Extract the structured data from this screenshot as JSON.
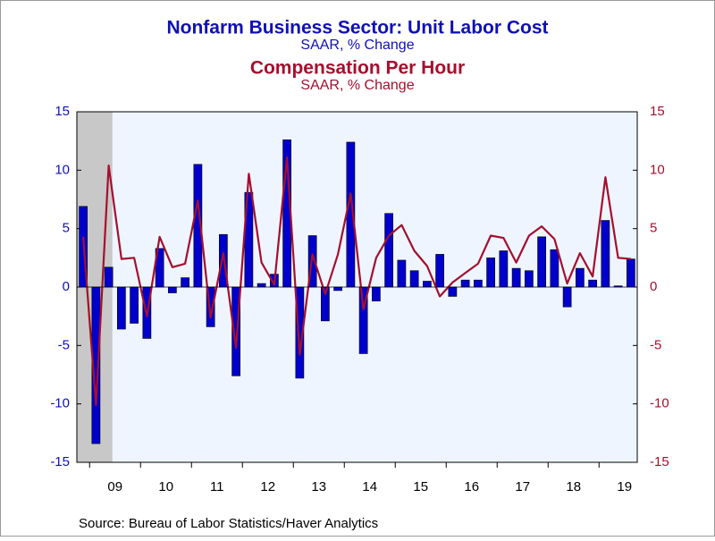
{
  "chart_data": {
    "type": "bar_line",
    "title": "Nonfarm Business Sector: Unit Labor Cost",
    "subtitle": "SAAR, % Change",
    "title2": "Compensation Per Hour",
    "subtitle2": "SAAR, % Change",
    "source": "Source:  Bureau of Labor Statistics/Haver Analytics",
    "categories": [
      null,
      null,
      "09",
      null,
      null,
      null,
      "10",
      null,
      null,
      null,
      "11",
      null,
      null,
      null,
      "12",
      null,
      null,
      null,
      "13",
      null,
      null,
      null,
      "14",
      null,
      null,
      null,
      "15",
      null,
      null,
      null,
      "16",
      null,
      null,
      null,
      "17",
      null,
      null,
      null,
      "18",
      null,
      null,
      null,
      "19",
      null
    ],
    "series": [
      {
        "name": "Unit Labor Cost",
        "type": "bar",
        "color": "#0000cc",
        "axis": "y",
        "values": [
          6.9,
          -13.4,
          1.7,
          -3.6,
          -3.1,
          -4.4,
          3.3,
          -0.5,
          0.8,
          10.5,
          -3.4,
          4.5,
          -7.6,
          8.1,
          0.3,
          1.1,
          12.6,
          -7.8,
          4.4,
          -2.9,
          -0.3,
          12.4,
          -5.7,
          -1.2,
          6.3,
          2.3,
          1.4,
          0.5,
          2.8,
          -0.8,
          0.6,
          0.6,
          2.5,
          3.1,
          1.6,
          1.4,
          4.3,
          3.2,
          -1.7,
          1.6,
          0.6,
          5.7,
          0.1,
          2.4
        ]
      },
      {
        "name": "Compensation Per Hour",
        "type": "line",
        "color": "#a50f2d",
        "axis": "y2",
        "values": [
          4.3,
          -10.1,
          10.4,
          2.4,
          2.5,
          -2.5,
          4.3,
          1.7,
          2.0,
          7.4,
          -2.6,
          2.9,
          -5.2,
          9.7,
          2.1,
          0.2,
          11.1,
          -5.8,
          2.8,
          -0.6,
          2.8,
          8.0,
          -1.9,
          2.5,
          4.4,
          5.3,
          3.1,
          1.8,
          -0.8,
          0.4,
          1.2,
          2.0,
          4.4,
          4.2,
          2.1,
          4.4,
          5.2,
          4.1,
          0.3,
          2.9,
          0.9,
          9.4,
          2.5,
          2.4
        ]
      }
    ],
    "ylim": [
      -15,
      15
    ],
    "yticks": [
      -15,
      -10,
      -5,
      0,
      5,
      10,
      15
    ],
    "y2lim": [
      -15,
      15
    ],
    "y2ticks": [
      -15,
      -10,
      -5,
      0,
      5,
      10,
      15
    ]
  }
}
